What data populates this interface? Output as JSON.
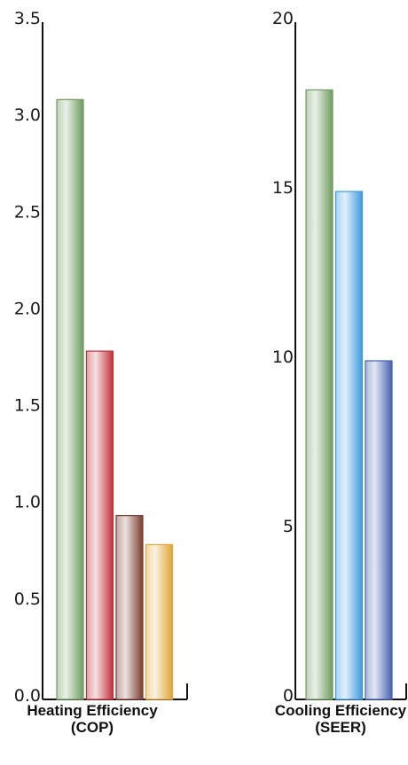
{
  "chart_data": [
    {
      "type": "bar",
      "title": "",
      "xlabel": "Heating Efficiency (COP)",
      "xlabel_lines": [
        "Heating Efficiency",
        "(COP)"
      ],
      "ylabel": "",
      "ylim": [
        0,
        3.5
      ],
      "yticks": [
        0,
        0.5,
        1,
        1.5,
        2,
        2.5,
        3,
        3.5
      ],
      "ytick_labels": [
        "0.0",
        "0.5",
        "1.0",
        "1.5",
        "2.0",
        "2.5",
        "3.0",
        "3.5"
      ],
      "categories": [
        "",
        "",
        "",
        ""
      ],
      "values": [
        3.1,
        1.8,
        0.95,
        0.8
      ],
      "colors": [
        "#6f9b5f",
        "#c0303a",
        "#7a3b2e",
        "#e0a535"
      ],
      "grid": false
    },
    {
      "type": "bar",
      "title": "",
      "xlabel": "Cooling Efficiency (SEER)",
      "xlabel_lines": [
        "Cooling Efficiency",
        "(SEER)"
      ],
      "ylabel": "",
      "ylim": [
        0,
        20
      ],
      "yticks": [
        0,
        5,
        10,
        15,
        20
      ],
      "ytick_labels": [
        "0",
        "5",
        "10",
        "15",
        "20"
      ],
      "categories": [
        "",
        "",
        ""
      ],
      "values": [
        18,
        15,
        10
      ],
      "colors": [
        "#6f9b5f",
        "#3f9be0",
        "#4561b0"
      ],
      "grid": false
    }
  ]
}
